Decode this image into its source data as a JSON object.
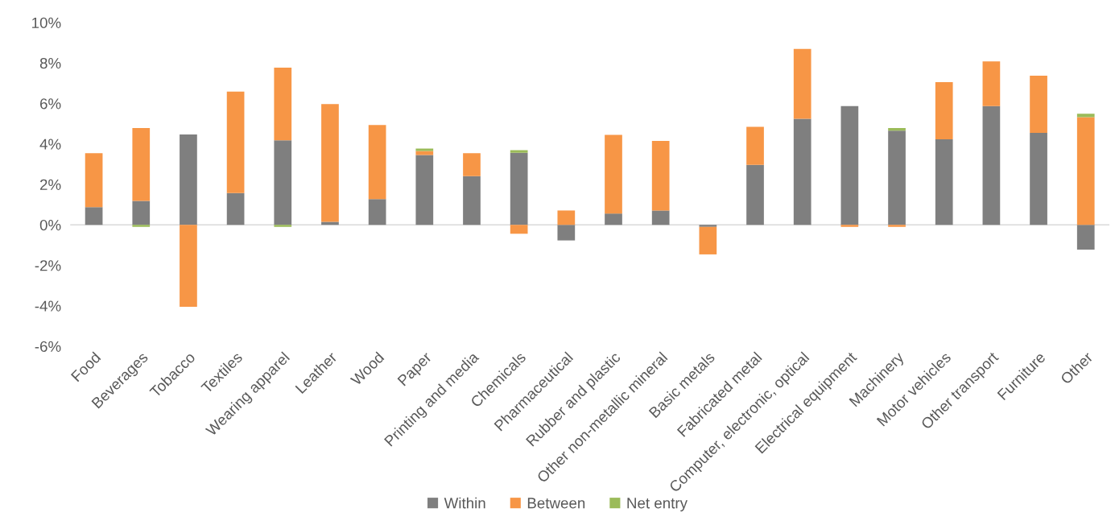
{
  "chart_data": {
    "type": "bar",
    "stacked": true,
    "categories": [
      "Food",
      "Beverages",
      "Tobacco",
      "Textiles",
      "Wearing apparel",
      "Leather",
      "Wood",
      "Paper",
      "Printing and media",
      "Chemicals",
      "Pharmaceutical",
      "Rubber and plastic",
      "Other non-metallic mineral",
      "Basic metals",
      "Fabricated metal",
      "Computer, electronic, optical",
      "Electrical equipment",
      "Machinery",
      "Motor vehicles",
      "Other transport",
      "Furniture",
      "Other"
    ],
    "series": [
      {
        "name": "Within",
        "color": "#7f7f7f",
        "values": [
          0.88,
          1.18,
          4.47,
          1.57,
          4.18,
          0.15,
          1.27,
          3.45,
          2.41,
          3.56,
          -0.77,
          0.56,
          0.71,
          -0.1,
          2.97,
          5.24,
          5.87,
          4.66,
          4.23,
          5.87,
          4.55,
          -1.22
        ]
      },
      {
        "name": "Between",
        "color": "#f79646",
        "values": [
          2.66,
          3.61,
          -4.05,
          5.02,
          3.59,
          5.82,
          3.67,
          0.2,
          1.13,
          -0.44,
          0.71,
          3.89,
          3.44,
          -1.36,
          1.88,
          3.46,
          -0.1,
          -0.1,
          2.82,
          2.21,
          2.82,
          5.32
        ]
      },
      {
        "name": "Net entry",
        "color": "#9bbb59",
        "values": [
          null,
          -0.1,
          null,
          null,
          -0.1,
          null,
          null,
          0.12,
          null,
          0.13,
          null,
          null,
          null,
          null,
          null,
          null,
          null,
          0.13,
          null,
          null,
          null,
          0.17
        ]
      }
    ],
    "ylim": [
      -6,
      10
    ],
    "yticks": [
      {
        "value": -6,
        "label": "-6%"
      },
      {
        "value": -4,
        "label": "-4%"
      },
      {
        "value": -2,
        "label": "-2%"
      },
      {
        "value": 0,
        "label": "0%"
      },
      {
        "value": 2,
        "label": "2%"
      },
      {
        "value": 4,
        "label": "4%"
      },
      {
        "value": 6,
        "label": "6%"
      },
      {
        "value": 8,
        "label": "8%"
      },
      {
        "value": 10,
        "label": "10%"
      }
    ],
    "ref_lines": [
      {
        "axis": "y",
        "value": 0,
        "color": "#d9d9d9"
      }
    ],
    "grid": false,
    "legend": "bottom"
  }
}
